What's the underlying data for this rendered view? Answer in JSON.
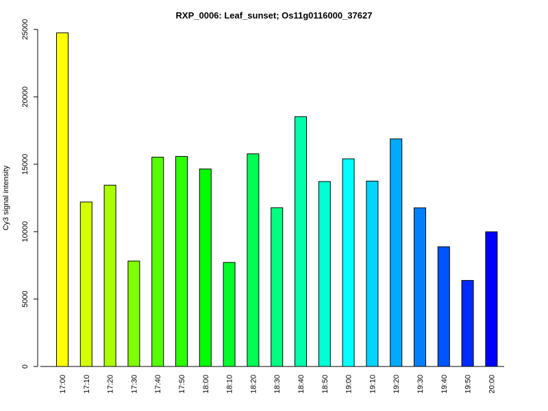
{
  "chart_data": {
    "type": "bar",
    "title": "RXP_0006: Leaf_sunset; Os11g0116000_37627",
    "xlabel": "",
    "ylabel": "Cy3  signal intensity",
    "ylim": [
      0,
      25000
    ],
    "yticks": [
      0,
      5000,
      10000,
      15000,
      20000,
      25000
    ],
    "grid": false,
    "legend": "none",
    "categories": [
      "17:00",
      "17:10",
      "17:20",
      "17:30",
      "17:40",
      "17:50",
      "18:00",
      "18:10",
      "18:20",
      "18:30",
      "18:40",
      "18:50",
      "19:00",
      "19:10",
      "19:20",
      "19:30",
      "19:40",
      "19:50",
      "20:00"
    ],
    "values": [
      24750,
      12200,
      13450,
      7820,
      15530,
      15580,
      14650,
      7720,
      15770,
      11780,
      18530,
      13720,
      15400,
      13750,
      16880,
      11770,
      8880,
      6380,
      9990
    ],
    "colors": [
      "#FFFF00",
      "#D4FF00",
      "#AAFF00",
      "#80FF00",
      "#55FF00",
      "#2BFF00",
      "#00FF00",
      "#00FF2A",
      "#00FF55",
      "#00FF80",
      "#00FFAA",
      "#00FFD5",
      "#00FFFF",
      "#00D4FF",
      "#00AAFF",
      "#0080FF",
      "#0055FF",
      "#002AFF",
      "#0000FF"
    ]
  }
}
